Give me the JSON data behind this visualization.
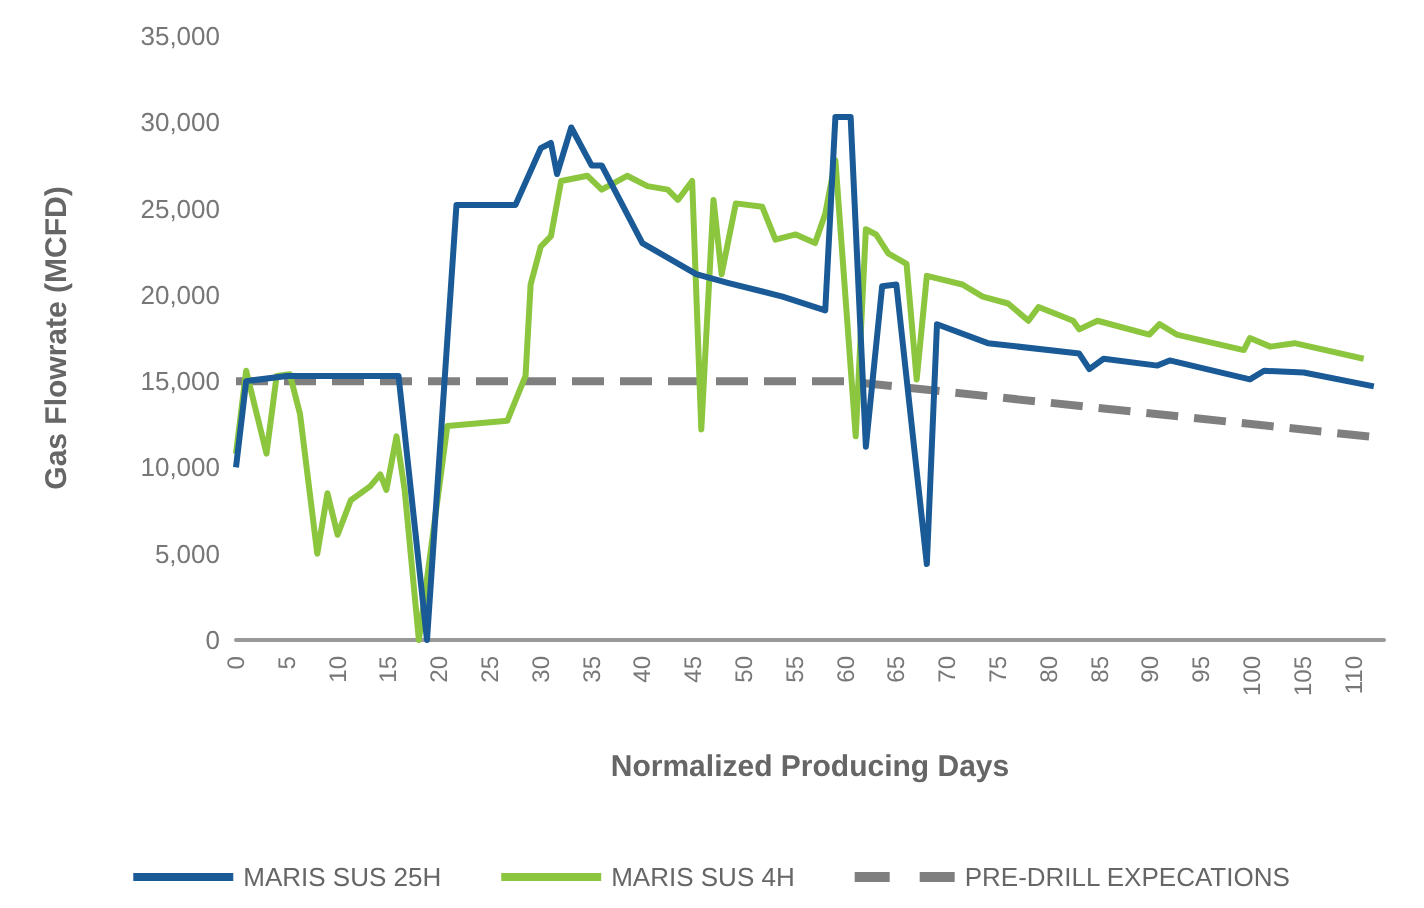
{
  "chart_data": {
    "type": "line",
    "xlabel": "Normalized Producing Days",
    "ylabel": "Gas Flowrate (MCFD)",
    "xlim": [
      0,
      113
    ],
    "xticks": [
      0,
      5,
      10,
      15,
      20,
      25,
      30,
      35,
      40,
      45,
      50,
      55,
      60,
      65,
      70,
      75,
      80,
      85,
      90,
      95,
      100,
      105,
      110
    ],
    "ylim": [
      0,
      35000
    ],
    "yticks": [
      0,
      {
        "value": 5000,
        "label": "5,000"
      },
      {
        "value": 10000,
        "label": "10,000"
      },
      {
        "value": 15000,
        "label": "15,000"
      },
      {
        "value": 20000,
        "label": "20,000"
      },
      {
        "value": 25000,
        "label": "25,000"
      },
      {
        "value": 30000,
        "label": "30,000"
      },
      {
        "value": 35000,
        "label": "35,000"
      }
    ],
    "grid": false,
    "legend": "bottom",
    "marker": "none",
    "series": [
      {
        "name": "MARIS SUS 25H",
        "color": "#1a5a96",
        "x": [
          0,
          1,
          5,
          16,
          18.8,
          21.7,
          27.5,
          30,
          31,
          31.6,
          33,
          35,
          36,
          40,
          45.3,
          48.4,
          53.8,
          58,
          59,
          60.5,
          62,
          63.6,
          65,
          68,
          69,
          74,
          83,
          84,
          85.4,
          90.7,
          91.9,
          99.8,
          101.2,
          105.1,
          112
        ],
        "values": [
          10000,
          15000,
          15300,
          15300,
          0,
          25200,
          25200,
          28500,
          28800,
          27000,
          29700,
          27500,
          27500,
          23000,
          21200,
          20700,
          19900,
          19100,
          30300,
          30300,
          11200,
          20500,
          20600,
          4400,
          18300,
          17200,
          16600,
          15700,
          16300,
          15900,
          16200,
          15100,
          15600,
          15500,
          14700
        ]
      },
      {
        "name": "MARIS SUS 4H",
        "color": "#8cc63f",
        "x": [
          0,
          1,
          3,
          4,
          5.3,
          6.3,
          8,
          9,
          10,
          11.3,
          13.2,
          14.2,
          14.8,
          15.8,
          16.6,
          18,
          20.8,
          26.7,
          28.5,
          29,
          30,
          31,
          32,
          34.6,
          36,
          38.5,
          40.5,
          42.5,
          43.5,
          44.9,
          45.8,
          47,
          47.8,
          49.2,
          51.8,
          53.1,
          55.1,
          57,
          58,
          59,
          61,
          62,
          63,
          64.2,
          66,
          67,
          68,
          71.5,
          73.5,
          76,
          78,
          79,
          82.4,
          83,
          84.8,
          89.9,
          90.9,
          92.6,
          99.2,
          99.8,
          101.8,
          104.2,
          111
        ],
        "values": [
          10800,
          15600,
          10800,
          15300,
          15400,
          13100,
          5000,
          8500,
          6100,
          8100,
          8900,
          9600,
          8700,
          11800,
          8700,
          0,
          12400,
          12700,
          15300,
          20600,
          22800,
          23400,
          26600,
          26900,
          26100,
          26900,
          26300,
          26100,
          25500,
          26600,
          12200,
          25500,
          21200,
          25300,
          25100,
          23200,
          23500,
          23000,
          24700,
          27800,
          11800,
          23800,
          23500,
          22400,
          21800,
          15100,
          21100,
          20600,
          19900,
          19500,
          18500,
          19300,
          18500,
          18000,
          18500,
          17700,
          18300,
          17700,
          16800,
          17500,
          17000,
          17200,
          16300
        ]
      },
      {
        "name": "PRE-DRILL EXPECATIONS",
        "color": "#7f7f7f",
        "line_style": "dashed",
        "x": [
          0,
          60,
          113
        ],
        "values": [
          15000,
          15000,
          11700
        ]
      }
    ]
  }
}
